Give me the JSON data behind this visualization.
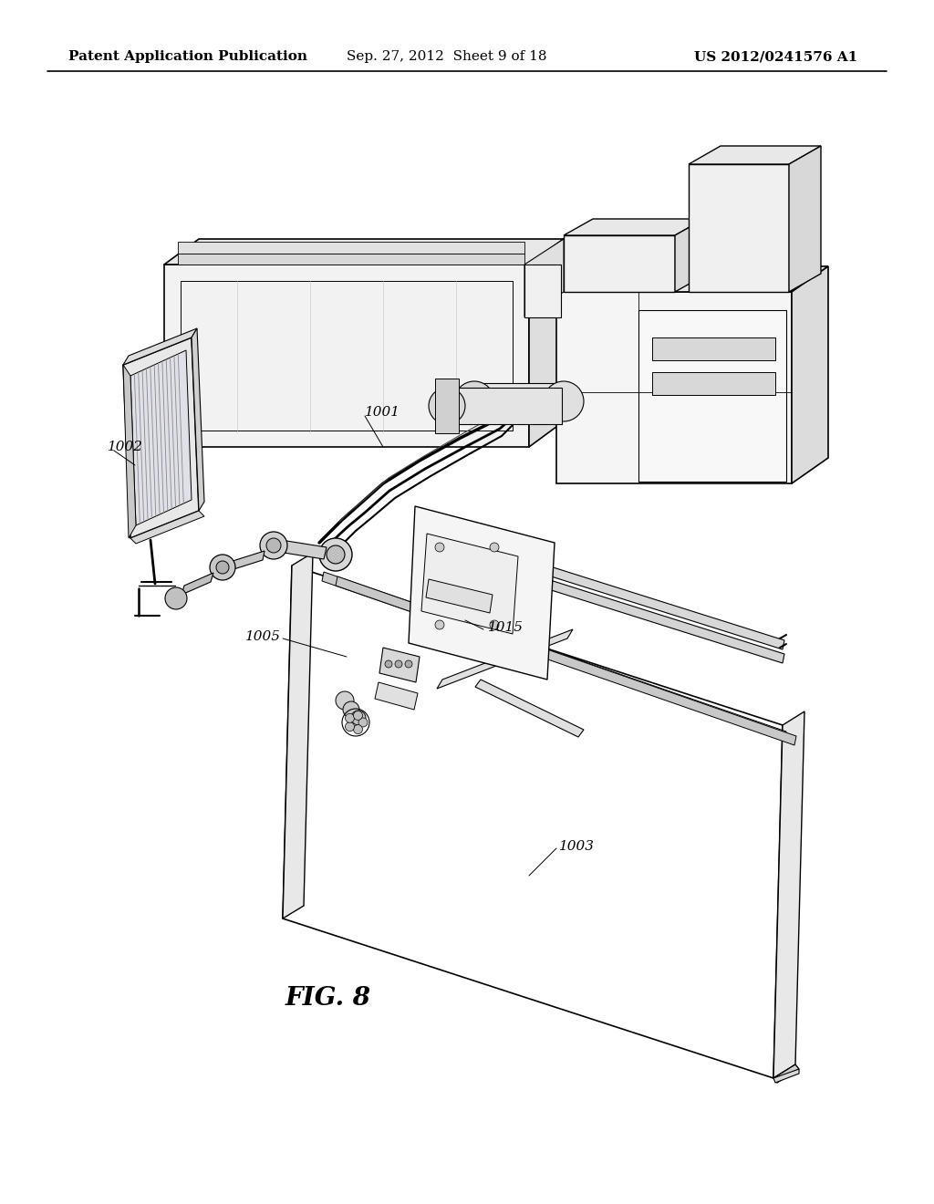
{
  "background_color": "#ffffff",
  "header_left": "Patent Application Publication",
  "header_center": "Sep. 27, 2012  Sheet 9 of 18",
  "header_right": "US 2012/0241576 A1",
  "fig_label": "FIG. 8",
  "label_fontsize": 11,
  "fig_label_fontsize": 20,
  "header_fontsize": 11,
  "lc": "#000000",
  "drawing_color": "#1a1a1a"
}
